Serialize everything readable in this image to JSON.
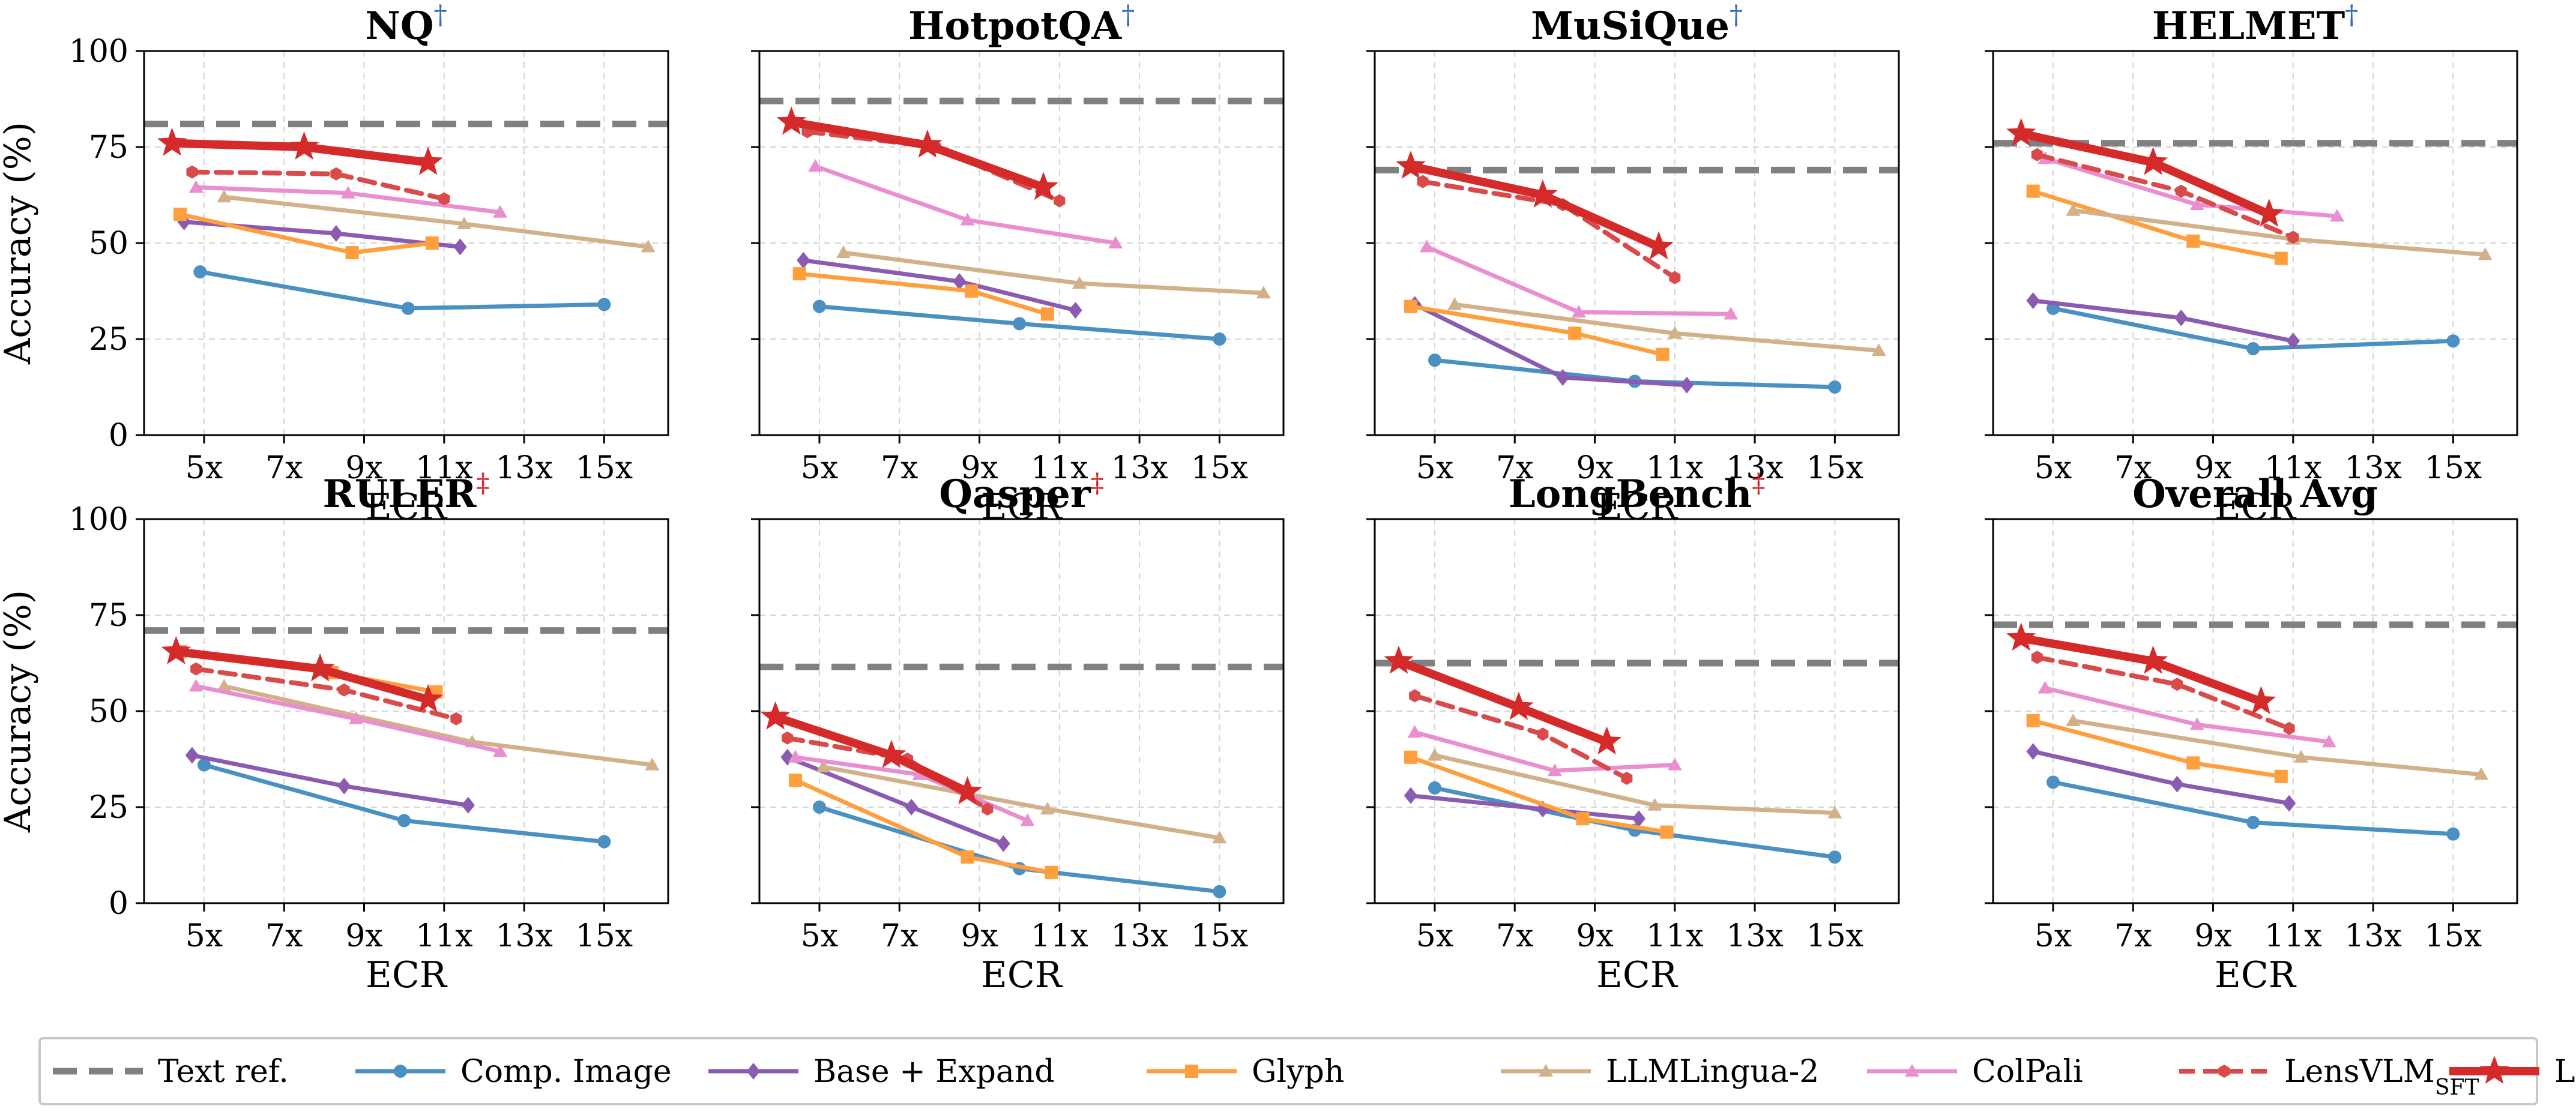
{
  "chart_data": {
    "type": "line",
    "xlabel": "ECR",
    "ylabel": "Accuracy (%)",
    "xticks": [
      "5x",
      "7x",
      "9x",
      "11x",
      "13x",
      "15x"
    ],
    "xtick_values": [
      5,
      7,
      9,
      11,
      13,
      15
    ],
    "yticks": [
      "0",
      "25",
      "50",
      "75",
      "100"
    ],
    "ytick_values": [
      0,
      25,
      50,
      75,
      100
    ],
    "ylim": [
      0,
      100
    ],
    "grid": true,
    "legend_position": "bottom",
    "colors": {
      "text_ref": "#808080",
      "comp_image": "#4a90c2",
      "base_expand": "#8a5bb0",
      "glyph": "#ff9e3d",
      "llmlingua2": "#d2b08a",
      "colpali": "#e98fd0",
      "lensvlm_sft": "#d94a4a",
      "lensvlm": "#d42a2a",
      "dagger_blue": "#2f6db5",
      "dagger_red": "#d42a2a"
    },
    "legend": [
      {
        "key": "text_ref",
        "label": "Text ref."
      },
      {
        "key": "comp_image",
        "label": "Comp. Image"
      },
      {
        "key": "base_expand",
        "label": "Base + Expand"
      },
      {
        "key": "glyph",
        "label": "Glyph"
      },
      {
        "key": "llmlingua2",
        "label": "LLMLingua-2"
      },
      {
        "key": "colpali",
        "label": "ColPali"
      },
      {
        "key": "lensvlm_sft",
        "label": "LensVLM",
        "subscript": "SFT"
      },
      {
        "key": "lensvlm",
        "label": "LensVLM"
      }
    ],
    "panels": [
      {
        "title": "NQ",
        "mark": "†",
        "mark_color": "dagger_blue",
        "text_ref": 81,
        "series": {
          "comp_image": [
            [
              4.9,
              42.5
            ],
            [
              10.1,
              33.0
            ],
            [
              15.0,
              34.0
            ]
          ],
          "base_expand": [
            [
              4.5,
              55.5
            ],
            [
              8.3,
              52.5
            ],
            [
              11.4,
              49.0
            ]
          ],
          "glyph": [
            [
              4.4,
              57.5
            ],
            [
              8.7,
              47.5
            ],
            [
              10.7,
              50.0
            ]
          ],
          "llmlingua2": [
            [
              5.5,
              62.0
            ],
            [
              11.5,
              55.0
            ],
            [
              16.1,
              49.0
            ]
          ],
          "colpali": [
            [
              4.8,
              64.5
            ],
            [
              8.6,
              63.0
            ],
            [
              12.4,
              58.0
            ]
          ],
          "lensvlm_sft": [
            [
              4.7,
              68.5
            ],
            [
              8.3,
              68.0
            ],
            [
              11.0,
              61.5
            ]
          ],
          "lensvlm": [
            [
              4.2,
              76.0
            ],
            [
              7.5,
              75.0
            ],
            [
              10.6,
              71.0
            ]
          ]
        }
      },
      {
        "title": "HotpotQA",
        "mark": "†",
        "mark_color": "dagger_blue",
        "text_ref": 87,
        "series": {
          "comp_image": [
            [
              5.0,
              33.5
            ],
            [
              10.0,
              29.0
            ],
            [
              15.0,
              25.0
            ]
          ],
          "base_expand": [
            [
              4.6,
              45.5
            ],
            [
              8.5,
              40.0
            ],
            [
              11.4,
              32.5
            ]
          ],
          "glyph": [
            [
              4.5,
              42.0
            ],
            [
              8.8,
              37.5
            ],
            [
              10.7,
              31.5
            ]
          ],
          "llmlingua2": [
            [
              5.6,
              47.5
            ],
            [
              11.5,
              39.5
            ],
            [
              16.1,
              37.0
            ]
          ],
          "colpali": [
            [
              4.9,
              70.0
            ],
            [
              8.7,
              56.0
            ],
            [
              12.4,
              50.0
            ]
          ],
          "lensvlm_sft": [
            [
              4.7,
              79.0
            ],
            [
              7.9,
              75.0
            ],
            [
              11.0,
              61.0
            ]
          ],
          "lensvlm": [
            [
              4.3,
              81.5
            ],
            [
              7.7,
              75.5
            ],
            [
              10.6,
              64.5
            ]
          ]
        }
      },
      {
        "title": "MuSiQue",
        "mark": "†",
        "mark_color": "dagger_blue",
        "text_ref": 69,
        "series": {
          "comp_image": [
            [
              5.0,
              19.5
            ],
            [
              10.0,
              14.0
            ],
            [
              15.0,
              12.5
            ]
          ],
          "base_expand": [
            [
              4.5,
              34.0
            ],
            [
              8.2,
              15.0
            ],
            [
              11.3,
              13.0
            ]
          ],
          "glyph": [
            [
              4.4,
              33.5
            ],
            [
              8.5,
              26.5
            ],
            [
              10.7,
              21.0
            ]
          ],
          "llmlingua2": [
            [
              5.5,
              34.0
            ],
            [
              11.0,
              26.5
            ],
            [
              16.1,
              22.0
            ]
          ],
          "colpali": [
            [
              4.8,
              49.0
            ],
            [
              8.6,
              32.0
            ],
            [
              12.4,
              31.5
            ]
          ],
          "lensvlm_sft": [
            [
              4.7,
              66.0
            ],
            [
              8.2,
              60.0
            ],
            [
              11.0,
              41.0
            ]
          ],
          "lensvlm": [
            [
              4.4,
              70.0
            ],
            [
              7.7,
              62.5
            ],
            [
              10.6,
              49.0
            ]
          ]
        }
      },
      {
        "title": "HELMET",
        "mark": "†",
        "mark_color": "dagger_blue",
        "text_ref": 76,
        "series": {
          "comp_image": [
            [
              5.0,
              33.0
            ],
            [
              10.0,
              22.5
            ],
            [
              15.0,
              24.5
            ]
          ],
          "base_expand": [
            [
              4.5,
              35.0
            ],
            [
              8.2,
              30.5
            ],
            [
              11.0,
              24.5
            ]
          ],
          "glyph": [
            [
              4.5,
              63.5
            ],
            [
              8.5,
              50.5
            ],
            [
              10.7,
              46.0
            ]
          ],
          "llmlingua2": [
            [
              5.5,
              58.5
            ],
            [
              11.0,
              51.0
            ],
            [
              15.8,
              47.0
            ]
          ],
          "colpali": [
            [
              4.8,
              72.0
            ],
            [
              8.6,
              60.0
            ],
            [
              12.1,
              57.0
            ]
          ],
          "lensvlm_sft": [
            [
              4.6,
              73.0
            ],
            [
              8.2,
              63.5
            ],
            [
              11.0,
              51.5
            ]
          ],
          "lensvlm": [
            [
              4.2,
              78.5
            ],
            [
              7.5,
              71.0
            ],
            [
              10.4,
              57.5
            ]
          ]
        }
      },
      {
        "title": "RULER",
        "mark": "‡",
        "mark_color": "dagger_red",
        "text_ref": 71,
        "series": {
          "comp_image": [
            [
              5.0,
              36.0
            ],
            [
              10.0,
              21.5
            ],
            [
              15.0,
              16.0
            ]
          ],
          "base_expand": [
            [
              4.7,
              38.5
            ],
            [
              8.5,
              30.5
            ],
            [
              11.6,
              25.5
            ]
          ],
          "glyph": [
            [
              4.4,
              65.5
            ],
            [
              8.2,
              60.0
            ],
            [
              10.8,
              55.0
            ]
          ],
          "llmlingua2": [
            [
              5.5,
              56.5
            ],
            [
              11.7,
              42.0
            ],
            [
              16.2,
              36.0
            ]
          ],
          "colpali": [
            [
              4.8,
              56.5
            ],
            [
              8.8,
              48.0
            ],
            [
              12.4,
              39.5
            ]
          ],
          "lensvlm_sft": [
            [
              4.8,
              61.0
            ],
            [
              8.5,
              55.5
            ],
            [
              11.3,
              48.0
            ]
          ],
          "lensvlm": [
            [
              4.3,
              65.5
            ],
            [
              7.9,
              61.0
            ],
            [
              10.6,
              53.0
            ]
          ]
        }
      },
      {
        "title": "Qasper",
        "mark": "‡",
        "mark_color": "dagger_red",
        "text_ref": 61.5,
        "series": {
          "comp_image": [
            [
              5.0,
              25.0
            ],
            [
              10.0,
              9.0
            ],
            [
              15.0,
              3.0
            ]
          ],
          "base_expand": [
            [
              4.2,
              38.0
            ],
            [
              7.3,
              25.0
            ],
            [
              9.6,
              15.5
            ]
          ],
          "glyph": [
            [
              4.4,
              32.0
            ],
            [
              8.7,
              12.0
            ],
            [
              10.8,
              8.0
            ]
          ],
          "llmlingua2": [
            [
              5.1,
              35.5
            ],
            [
              10.7,
              24.5
            ],
            [
              15.0,
              17.0
            ]
          ],
          "colpali": [
            [
              4.4,
              38.0
            ],
            [
              7.5,
              33.5
            ],
            [
              10.2,
              21.5
            ]
          ],
          "lensvlm_sft": [
            [
              4.2,
              43.0
            ],
            [
              7.2,
              37.5
            ],
            [
              9.2,
              24.5
            ]
          ],
          "lensvlm": [
            [
              3.9,
              48.5
            ],
            [
              6.8,
              38.5
            ],
            [
              8.7,
              29.0
            ]
          ]
        }
      },
      {
        "title": "LongBench",
        "mark": "‡",
        "mark_color": "dagger_red",
        "text_ref": 62.5,
        "series": {
          "comp_image": [
            [
              5.0,
              30.0
            ],
            [
              10.0,
              19.0
            ],
            [
              15.0,
              12.0
            ]
          ],
          "base_expand": [
            [
              4.4,
              28.0
            ],
            [
              7.7,
              24.5
            ],
            [
              10.1,
              22.0
            ]
          ],
          "glyph": [
            [
              4.4,
              38.0
            ],
            [
              8.7,
              22.0
            ],
            [
              10.8,
              18.5
            ]
          ],
          "llmlingua2": [
            [
              5.0,
              38.5
            ],
            [
              10.5,
              25.5
            ],
            [
              15.0,
              23.5
            ]
          ],
          "colpali": [
            [
              4.5,
              44.5
            ],
            [
              8.0,
              34.5
            ],
            [
              11.0,
              36.0
            ]
          ],
          "lensvlm_sft": [
            [
              4.5,
              54.0
            ],
            [
              7.7,
              44.0
            ],
            [
              9.8,
              32.5
            ]
          ],
          "lensvlm": [
            [
              4.1,
              63.0
            ],
            [
              7.1,
              51.0
            ],
            [
              9.3,
              42.0
            ]
          ]
        }
      },
      {
        "title": "Overall Avg",
        "mark": "",
        "mark_color": "dagger_blue",
        "text_ref": 72.5,
        "series": {
          "comp_image": [
            [
              5.0,
              31.5
            ],
            [
              10.0,
              21.0
            ],
            [
              15.0,
              18.0
            ]
          ],
          "base_expand": [
            [
              4.5,
              39.5
            ],
            [
              8.1,
              31.0
            ],
            [
              10.9,
              26.0
            ]
          ],
          "glyph": [
            [
              4.5,
              47.5
            ],
            [
              8.5,
              36.5
            ],
            [
              10.7,
              33.0
            ]
          ],
          "llmlingua2": [
            [
              5.5,
              47.5
            ],
            [
              11.2,
              38.0
            ],
            [
              15.7,
              33.5
            ]
          ],
          "colpali": [
            [
              4.8,
              56.0
            ],
            [
              8.6,
              46.5
            ],
            [
              11.9,
              42.0
            ]
          ],
          "lensvlm_sft": [
            [
              4.6,
              64.0
            ],
            [
              8.1,
              57.0
            ],
            [
              10.9,
              45.5
            ]
          ],
          "lensvlm": [
            [
              4.2,
              69.0
            ],
            [
              7.5,
              63.0
            ],
            [
              10.2,
              52.5
            ]
          ]
        }
      }
    ]
  }
}
